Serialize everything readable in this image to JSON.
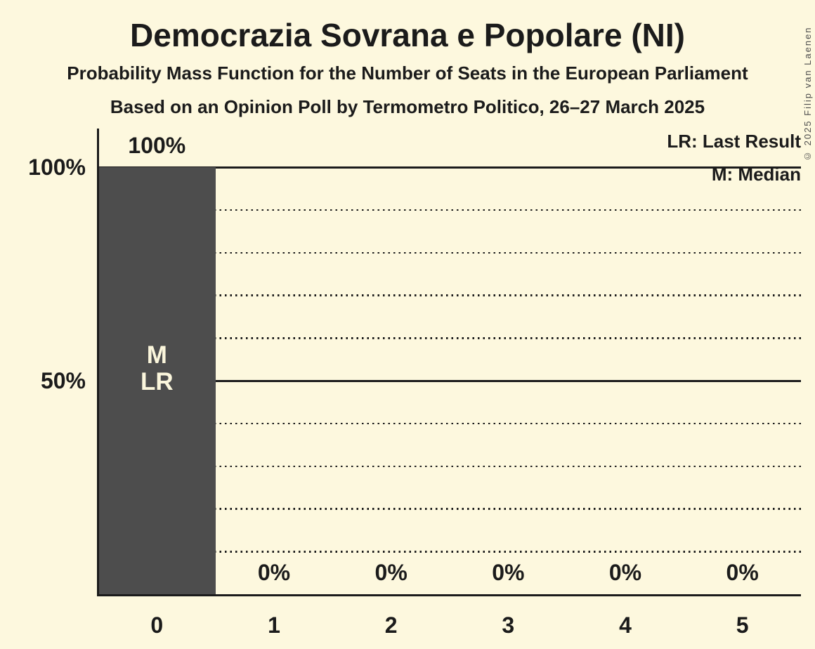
{
  "page": {
    "background_color": "#FDF8DE",
    "ink_color": "#1B1B1B"
  },
  "header": {
    "title": "Democrazia Sovrana e Popolare (NI)",
    "subtitle": "Probability Mass Function for the Number of Seats in the European Parliament",
    "source_line": "Based on an Opinion Poll by Termometro Politico, 26–27 March 2025"
  },
  "legend": {
    "last_result": "LR: Last Result",
    "median": "M: Median"
  },
  "copyright": "© 2025 Filip van Laenen",
  "chart_data": {
    "type": "bar",
    "title": "Democrazia Sovrana e Popolare (NI)",
    "xlabel": "",
    "ylabel": "",
    "categories": [
      "0",
      "1",
      "2",
      "3",
      "4",
      "5"
    ],
    "values": [
      100,
      0,
      0,
      0,
      0,
      0
    ],
    "bar_value_labels": [
      "100%",
      "0%",
      "0%",
      "0%",
      "0%",
      "0%"
    ],
    "ylim": [
      0,
      100
    ],
    "yticks": [
      {
        "value": 100,
        "label": "100%",
        "line_style": "solid"
      },
      {
        "value": 50,
        "label": "50%",
        "line_style": "solid"
      }
    ],
    "dotted_gridlines": [
      90,
      80,
      70,
      60,
      40,
      30,
      20,
      10
    ],
    "annotations": [
      {
        "category_index": 0,
        "lines": [
          "M",
          "LR"
        ],
        "meaning": "Median and Last Result at 0 seats"
      }
    ],
    "legend_position": "top-right",
    "grid": "horizontal-only",
    "bar_color": "#4D4D4D",
    "on_bar_text_color": "#FBF6DC"
  }
}
